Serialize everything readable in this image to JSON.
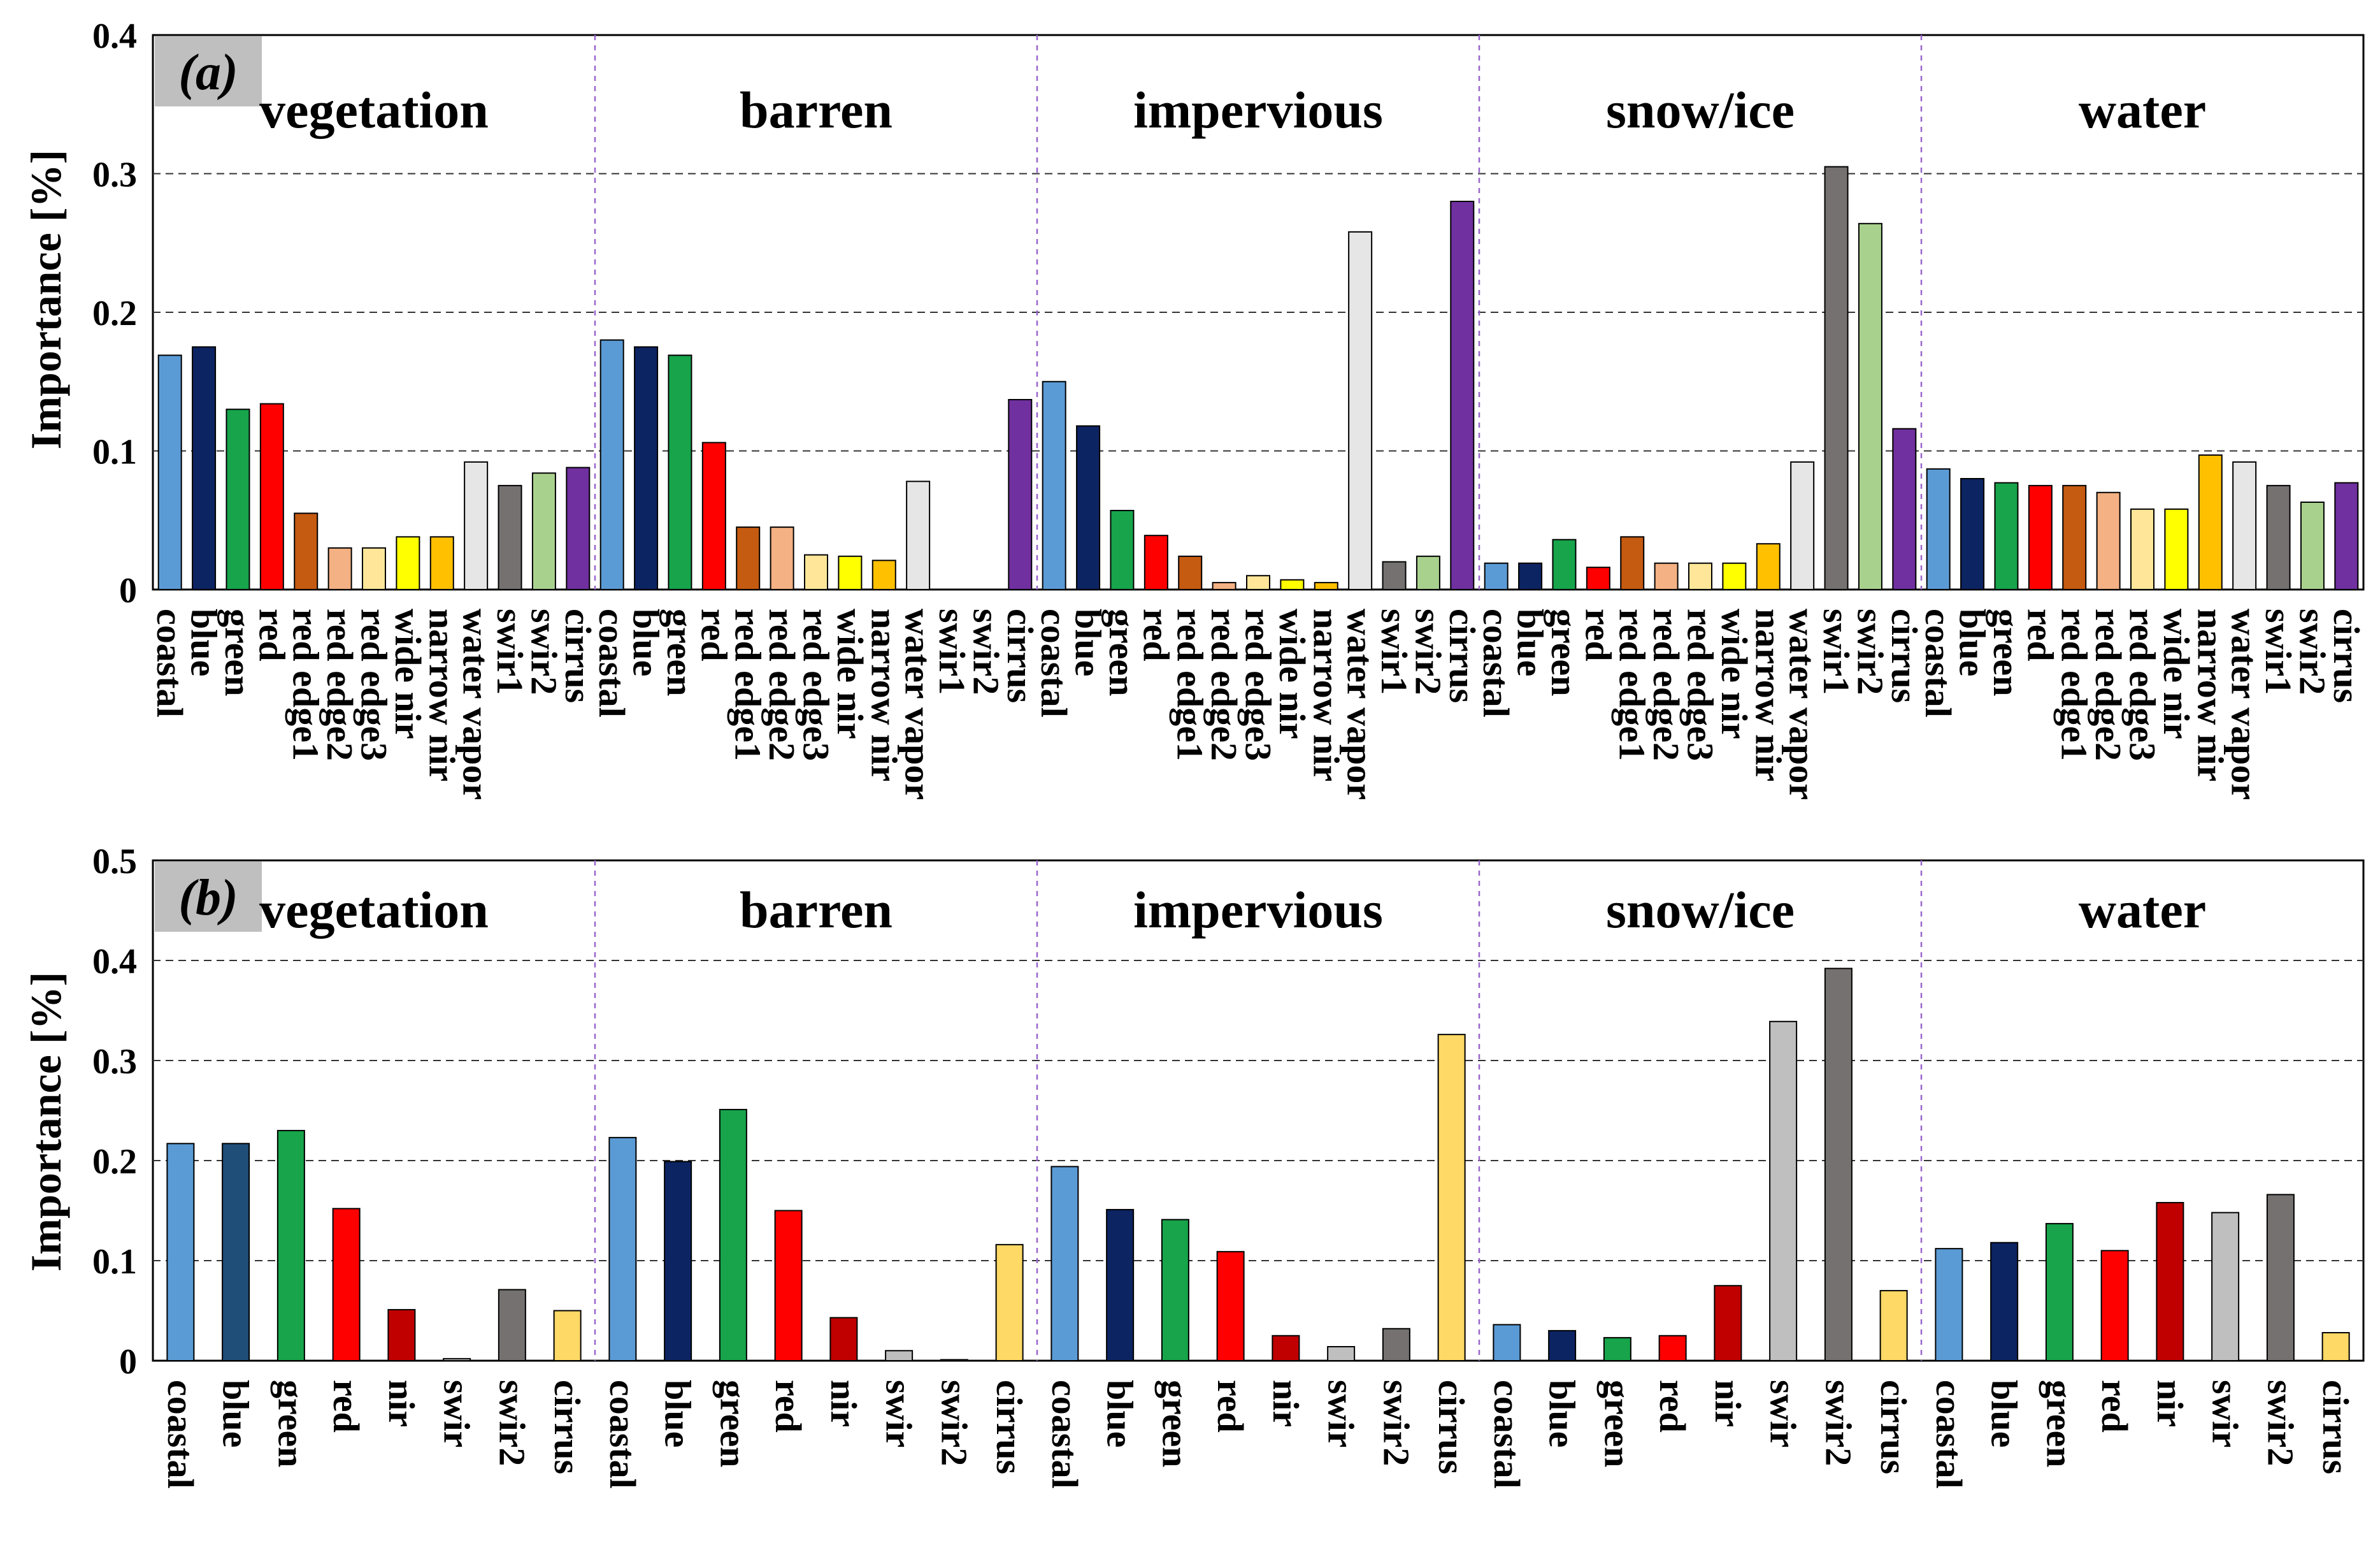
{
  "chart_data": [
    {
      "type": "bar",
      "panel_label": "(a)",
      "ylabel": "Importance [%]",
      "ylim": [
        0,
        0.4
      ],
      "yticks": [
        0,
        0.1,
        0.2,
        0.3,
        0.4
      ],
      "ytick_labels": [
        "0",
        "0.1",
        "0.2",
        "0.3",
        "0.4"
      ],
      "grid": "horizontal dashed",
      "groups": [
        {
          "name": "vegetation",
          "categories": [
            "coastal",
            "blue",
            "green",
            "red",
            "red edge1",
            "red edge2",
            "red edge3",
            "wide nir",
            "narrow nir",
            "water vapor",
            "swir1",
            "swir2",
            "cirrus"
          ],
          "values": [
            0.169,
            0.175,
            0.13,
            0.134,
            0.055,
            0.03,
            0.03,
            0.038,
            0.038,
            0.092,
            0.075,
            0.084,
            0.088
          ]
        },
        {
          "name": "barren",
          "categories": [
            "coastal",
            "blue",
            "green",
            "red",
            "red edge1",
            "red edge2",
            "red edge3",
            "wide nir",
            "narrow nir",
            "water vapor",
            "swir1",
            "swir2",
            "cirrus"
          ],
          "values": [
            0.18,
            0.175,
            0.169,
            0.106,
            0.045,
            0.045,
            0.025,
            0.024,
            0.021,
            0.078,
            0,
            0,
            0.137
          ]
        },
        {
          "name": "impervious",
          "categories": [
            "coastal",
            "blue",
            "green",
            "red",
            "red edge1",
            "red edge2",
            "red edge3",
            "wide nir",
            "narrow nir",
            "water vapor",
            "swir1",
            "swir2",
            "cirrus"
          ],
          "values": [
            0.15,
            0.118,
            0.057,
            0.039,
            0.024,
            0.005,
            0.01,
            0.007,
            0.005,
            0.258,
            0.02,
            0.024,
            0.28
          ]
        },
        {
          "name": "snow/ice",
          "categories": [
            "coastal",
            "blue",
            "green",
            "red",
            "red edge1",
            "red edge2",
            "red edge3",
            "wide nir",
            "narrow nir",
            "water vapor",
            "swir1",
            "swir2",
            "cirrus"
          ],
          "values": [
            0.019,
            0.019,
            0.036,
            0.016,
            0.038,
            0.019,
            0.019,
            0.019,
            0.033,
            0.092,
            0.305,
            0.264,
            0.116
          ]
        },
        {
          "name": "water",
          "categories": [
            "coastal",
            "blue",
            "green",
            "red",
            "red edge1",
            "red edge2",
            "red edge3",
            "wide nir",
            "narrow nir",
            "water vapor",
            "swir1",
            "swir2",
            "cirrus"
          ],
          "values": [
            0.087,
            0.08,
            0.077,
            0.075,
            0.075,
            0.07,
            0.058,
            0.058,
            0.097,
            0.092,
            0.075,
            0.063,
            0.077
          ]
        }
      ],
      "band_colors": {
        "coastal": "#5b9bd5",
        "blue": "#0d2463",
        "green": "#17a44b",
        "red": "#ff0000",
        "red edge1": "#c55a11",
        "red edge2": "#f4b183",
        "red edge3": "#ffe699",
        "wide nir": "#ffff00",
        "narrow nir": "#ffc000",
        "water vapor": "#e7e6e6",
        "swir1": "#767171",
        "swir2": "#a9d18e",
        "cirrus": "#7030a0"
      }
    },
    {
      "type": "bar",
      "panel_label": "(b)",
      "ylabel": "Importance [%]",
      "ylim": [
        0,
        0.5
      ],
      "yticks": [
        0,
        0.1,
        0.2,
        0.3,
        0.4,
        0.5
      ],
      "ytick_labels": [
        "0",
        "0.1",
        "0.2",
        "0.3",
        "0.4",
        "0.5"
      ],
      "grid": "horizontal dashed",
      "groups": [
        {
          "name": "vegetation",
          "categories": [
            "coastal",
            "blue",
            "green",
            "red",
            "nir",
            "swir",
            "swir2",
            "cirrus"
          ],
          "values": [
            0.217,
            0.217,
            0.23,
            0.152,
            0.051,
            0.002,
            0.071,
            0.05
          ],
          "colors": [
            "#5b9bd5",
            "#1f4e79",
            "#17a44b",
            "#ff0000",
            "#c00000",
            "#d0cece",
            "#767171",
            "#ffd966"
          ]
        },
        {
          "name": "barren",
          "categories": [
            "coastal",
            "blue",
            "green",
            "red",
            "nir",
            "swir",
            "swir2",
            "cirrus"
          ],
          "values": [
            0.223,
            0.199,
            0.251,
            0.15,
            0.043,
            0.01,
            0.001,
            0.116
          ],
          "colors": [
            "#5b9bd5",
            "#0d2463",
            "#17a44b",
            "#ff0000",
            "#c00000",
            "#bfbfbf",
            "#767171",
            "#ffd966"
          ]
        },
        {
          "name": "impervious",
          "categories": [
            "coastal",
            "blue",
            "green",
            "red",
            "nir",
            "swir",
            "swir2",
            "cirrus"
          ],
          "values": [
            0.194,
            0.151,
            0.141,
            0.109,
            0.025,
            0.014,
            0.032,
            0.326
          ],
          "colors": [
            "#5b9bd5",
            "#0d2463",
            "#17a44b",
            "#ff0000",
            "#c00000",
            "#bfbfbf",
            "#767171",
            "#ffd966"
          ]
        },
        {
          "name": "snow/ice",
          "categories": [
            "coastal",
            "blue",
            "green",
            "red",
            "nir",
            "swir",
            "swir2",
            "cirrus"
          ],
          "values": [
            0.036,
            0.03,
            0.023,
            0.025,
            0.075,
            0.339,
            0.392,
            0.07
          ],
          "colors": [
            "#5b9bd5",
            "#0d2463",
            "#17a44b",
            "#ff0000",
            "#c00000",
            "#bfbfbf",
            "#767171",
            "#ffd966"
          ]
        },
        {
          "name": "water",
          "categories": [
            "coastal",
            "blue",
            "green",
            "red",
            "nir",
            "swir",
            "swir2",
            "cirrus"
          ],
          "values": [
            0.112,
            0.118,
            0.137,
            0.11,
            0.158,
            0.148,
            0.166,
            0.028
          ],
          "colors": [
            "#5b9bd5",
            "#0d2463",
            "#17a44b",
            "#ff0000",
            "#c00000",
            "#bfbfbf",
            "#767171",
            "#ffd966"
          ]
        }
      ]
    }
  ]
}
